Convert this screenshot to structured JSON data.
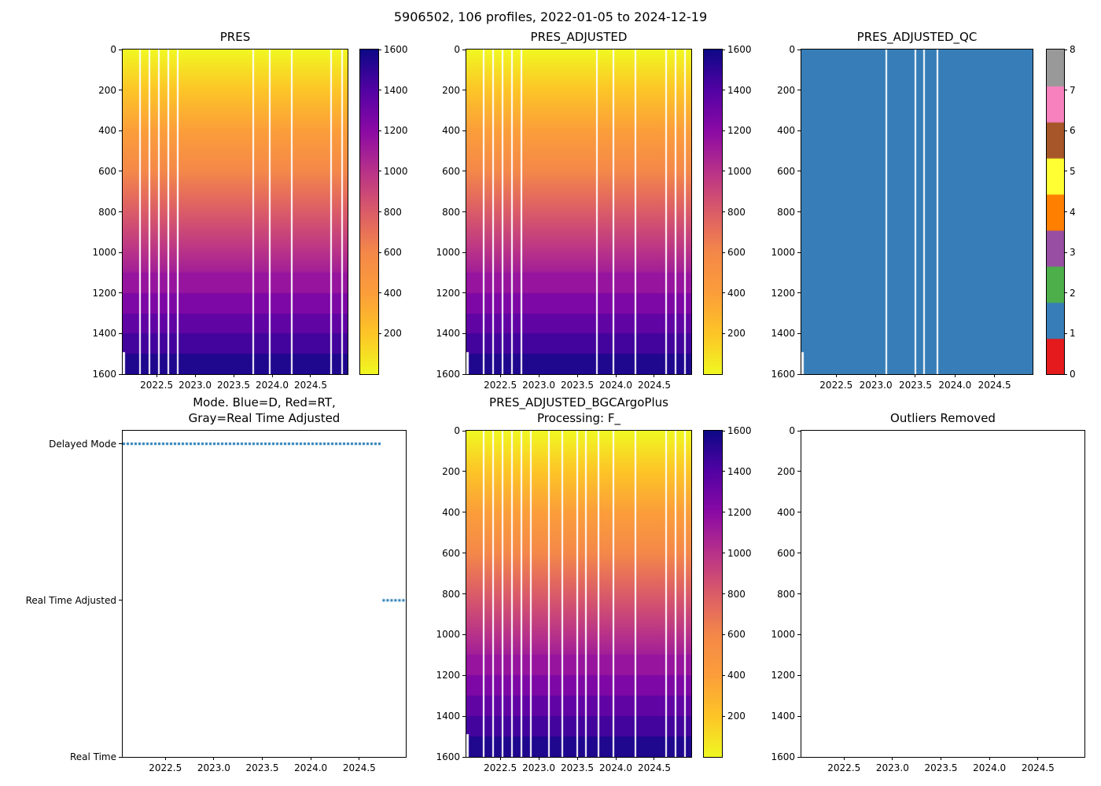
{
  "figure": {
    "title": "5906502, 106 profiles, 2022-01-05 to 2024-12-19",
    "platform_id": "5906502",
    "n_profiles": 106,
    "date_start": "2022-01-05",
    "date_end": "2024-12-19"
  },
  "shared": {
    "x_range": [
      2022.06,
      2024.98
    ],
    "x_tick_values": [
      2022.5,
      2023.0,
      2023.5,
      2024.0,
      2024.5
    ],
    "x_tick_labels": [
      "2022.5",
      "2023.0",
      "2023.5",
      "2024.0",
      "2024.5"
    ],
    "depth_range": [
      0,
      1600
    ],
    "depth_tick_values": [
      0,
      200,
      400,
      600,
      800,
      1000,
      1200,
      1400,
      1600
    ],
    "pressure_colorbar_ticks": [
      200,
      400,
      600,
      800,
      1000,
      1200,
      1400,
      1600
    ],
    "qc_colorbar_ticks": [
      0,
      1,
      2,
      3,
      4,
      5,
      6,
      7,
      8
    ],
    "colors": {
      "plasma_r_surface_to_deep": [
        "#f0f921",
        "#fdc527",
        "#fb9e3a",
        "#f48849",
        "#db5c68",
        "#b83289",
        "#8b0aa5",
        "#5302a3",
        "#0d0887"
      ],
      "qc_palette": [
        "#e41a1c",
        "#377eb8",
        "#4daf4a",
        "#984ea3",
        "#ff7f00",
        "#ffff33",
        "#a65628",
        "#f781bf",
        "#999999"
      ],
      "qc_fill": "#377eb8",
      "mode_marker": "#1f77b4",
      "gap_color": "#ffffff"
    }
  },
  "chart_data": [
    {
      "id": "pres",
      "type": "heatmap",
      "title": "PRES",
      "x_range": [
        2022.06,
        2024.98
      ],
      "depth_range": [
        0,
        1600
      ],
      "value_description": "Pressure (dbar) vs depth: equals depth, 0 dbar at surface grading to ~1600 dbar at 1600 m",
      "value_range": [
        0,
        1600
      ],
      "colormap": "plasma_r",
      "colorbar_ticks": [
        200,
        400,
        600,
        800,
        1000,
        1200,
        1400,
        1600
      ],
      "coarse_bands_below_depth": 1100,
      "missing_profile_times": [
        2022.27,
        2022.4,
        2022.52,
        2022.64,
        2022.76,
        2023.74,
        2023.96,
        2024.24,
        2024.76,
        2024.9
      ],
      "left_edge_partial_profile_depth": 1490
    },
    {
      "id": "pres_adjusted",
      "type": "heatmap",
      "title": "PRES_ADJUSTED",
      "x_range": [
        2022.06,
        2024.98
      ],
      "depth_range": [
        0,
        1600
      ],
      "value_description": "Adjusted pressure (dbar), identical gradient 0-1600 dbar top to bottom",
      "value_range": [
        0,
        1600
      ],
      "colormap": "plasma_r",
      "colorbar_ticks": [
        200,
        400,
        600,
        800,
        1000,
        1200,
        1400,
        1600
      ],
      "coarse_bands_below_depth": 1100,
      "missing_profile_times": [
        2022.27,
        2022.4,
        2022.52,
        2022.64,
        2022.76,
        2023.74,
        2023.96,
        2024.24,
        2024.64,
        2024.77,
        2024.89
      ],
      "left_edge_partial_profile_depth": 1490
    },
    {
      "id": "pres_adjusted_qc",
      "type": "qc_heatmap",
      "title": "PRES_ADJUSTED_QC",
      "x_range": [
        2022.06,
        2024.98
      ],
      "depth_range": [
        0,
        1600
      ],
      "qc_value_all": 1,
      "qc_scale": [
        0,
        1,
        2,
        3,
        4,
        5,
        6,
        7,
        8
      ],
      "missing_profile_times": [
        2023.12,
        2023.49,
        2023.6,
        2023.77
      ],
      "left_edge_partial_profile_depth": 1490
    },
    {
      "id": "mode",
      "type": "categorical_scatter",
      "title": "Mode. Blue=D, Red=RT,\nGray=Real Time Adjusted",
      "x_range": [
        2022.06,
        2024.98
      ],
      "categories": [
        "Delayed Mode",
        "Real Time Adjusted",
        "Real Time"
      ],
      "category_positions": [
        0.04,
        0.52,
        1.0
      ],
      "segments": [
        {
          "category": "Delayed Mode",
          "start": 2022.06,
          "end": 2024.72,
          "color": "#1f77b4"
        },
        {
          "category": "Real Time Adjusted",
          "start": 2024.74,
          "end": 2024.97,
          "color": "#1f77b4"
        }
      ]
    },
    {
      "id": "bgc",
      "type": "heatmap",
      "title": "PRES_ADJUSTED_BGCArgoPlus\nProcessing: F_",
      "x_range": [
        2022.06,
        2024.98
      ],
      "depth_range": [
        0,
        1600
      ],
      "value_description": "BGC Argo Plus adjusted pressure (dbar), gradient 0-1600 dbar top to bottom",
      "value_range": [
        0,
        1600
      ],
      "colormap": "plasma_r",
      "colorbar_ticks": [
        200,
        400,
        600,
        800,
        1000,
        1200,
        1400,
        1600
      ],
      "coarse_bands_below_depth": 1100,
      "missing_profile_times": [
        2022.27,
        2022.4,
        2022.52,
        2022.64,
        2022.76,
        2022.89,
        2023.12,
        2023.3,
        2023.49,
        2023.6,
        2023.77,
        2023.96,
        2024.24,
        2024.64,
        2024.77,
        2024.89
      ],
      "left_edge_partial_profile_depth": 1490
    },
    {
      "id": "outliers",
      "type": "empty",
      "title": "Outliers Removed",
      "x_range": [
        2022.06,
        2024.98
      ],
      "depth_range": [
        0,
        1600
      ]
    }
  ]
}
